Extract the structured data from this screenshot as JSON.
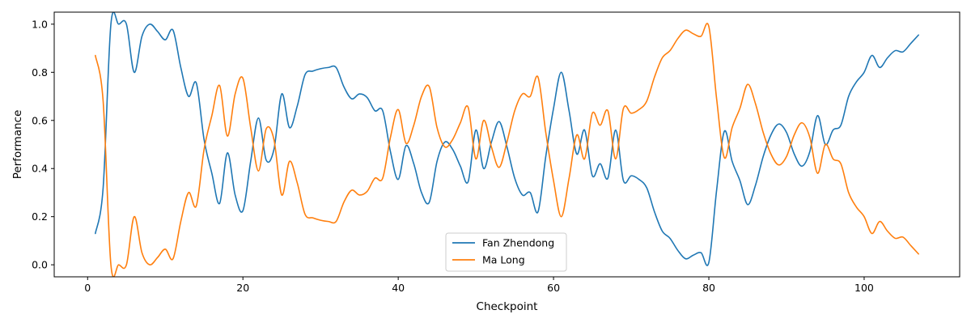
{
  "chart_data": {
    "type": "line",
    "title": "",
    "xlabel": "Checkpoint",
    "ylabel": "Performance",
    "xlim": [
      -4.3,
      112.3
    ],
    "ylim": [
      -0.05,
      1.05
    ],
    "x_ticks": [
      0,
      20,
      40,
      60,
      80,
      100
    ],
    "x_tick_labels": [
      "0",
      "20",
      "40",
      "60",
      "80",
      "100"
    ],
    "y_ticks": [
      0.0,
      0.2,
      0.4,
      0.6,
      0.8,
      1.0
    ],
    "y_tick_labels": [
      "0.0",
      "0.2",
      "0.4",
      "0.6",
      "0.8",
      "1.0"
    ],
    "grid": false,
    "legend_position": "lower-center",
    "x": [
      1,
      2,
      3,
      4,
      5,
      6,
      7,
      8,
      9,
      10,
      11,
      12,
      13,
      14,
      15,
      16,
      17,
      18,
      19,
      20,
      21,
      22,
      23,
      24,
      25,
      26,
      27,
      28,
      29,
      30,
      31,
      32,
      33,
      34,
      35,
      36,
      37,
      38,
      39,
      40,
      41,
      42,
      43,
      44,
      45,
      46,
      47,
      48,
      49,
      50,
      51,
      52,
      53,
      54,
      55,
      56,
      57,
      58,
      59,
      60,
      61,
      62,
      63,
      64,
      65,
      66,
      67,
      68,
      69,
      70,
      71,
      72,
      73,
      74,
      75,
      76,
      77,
      78,
      79,
      80,
      81,
      82,
      83,
      84,
      85,
      86,
      87,
      88,
      89,
      90,
      91,
      92,
      93,
      94,
      95,
      96,
      97,
      98,
      99,
      100,
      101,
      102,
      103,
      104,
      105,
      106,
      107
    ],
    "series": [
      {
        "name": "Fan Zhendong",
        "color": "#1f77b4",
        "values": [
          0.13,
          0.32,
          1.0,
          1.0,
          1.0,
          0.8,
          0.95,
          1.0,
          0.97,
          0.935,
          0.975,
          0.82,
          0.7,
          0.755,
          0.52,
          0.38,
          0.255,
          0.465,
          0.29,
          0.225,
          0.43,
          0.61,
          0.435,
          0.48,
          0.71,
          0.57,
          0.66,
          0.79,
          0.805,
          0.815,
          0.82,
          0.82,
          0.74,
          0.69,
          0.71,
          0.695,
          0.64,
          0.64,
          0.47,
          0.355,
          0.495,
          0.42,
          0.3,
          0.26,
          0.43,
          0.51,
          0.48,
          0.41,
          0.345,
          0.56,
          0.4,
          0.51,
          0.595,
          0.49,
          0.36,
          0.29,
          0.3,
          0.22,
          0.45,
          0.65,
          0.8,
          0.64,
          0.46,
          0.56,
          0.37,
          0.42,
          0.36,
          0.56,
          0.35,
          0.37,
          0.355,
          0.32,
          0.22,
          0.14,
          0.11,
          0.06,
          0.025,
          0.04,
          0.05,
          0.01,
          0.31,
          0.555,
          0.43,
          0.35,
          0.25,
          0.33,
          0.45,
          0.54,
          0.585,
          0.55,
          0.46,
          0.41,
          0.47,
          0.62,
          0.5,
          0.56,
          0.58,
          0.7,
          0.76,
          0.8,
          0.87,
          0.82,
          0.86,
          0.89,
          0.885,
          0.92,
          0.955
        ]
      },
      {
        "name": "Ma Long",
        "color": "#ff7f0e",
        "values": [
          0.87,
          0.68,
          0.0,
          0.0,
          0.0,
          0.2,
          0.05,
          0.0,
          0.03,
          0.065,
          0.025,
          0.18,
          0.3,
          0.245,
          0.48,
          0.62,
          0.745,
          0.535,
          0.71,
          0.775,
          0.57,
          0.39,
          0.565,
          0.52,
          0.29,
          0.43,
          0.34,
          0.21,
          0.195,
          0.185,
          0.18,
          0.18,
          0.26,
          0.31,
          0.29,
          0.305,
          0.36,
          0.36,
          0.53,
          0.645,
          0.505,
          0.58,
          0.7,
          0.74,
          0.57,
          0.49,
          0.52,
          0.59,
          0.655,
          0.44,
          0.6,
          0.49,
          0.405,
          0.51,
          0.64,
          0.71,
          0.7,
          0.78,
          0.55,
          0.35,
          0.2,
          0.36,
          0.54,
          0.44,
          0.63,
          0.58,
          0.64,
          0.44,
          0.65,
          0.63,
          0.645,
          0.68,
          0.78,
          0.86,
          0.89,
          0.94,
          0.975,
          0.96,
          0.95,
          0.99,
          0.69,
          0.445,
          0.57,
          0.65,
          0.75,
          0.67,
          0.55,
          0.46,
          0.415,
          0.45,
          0.54,
          0.59,
          0.53,
          0.38,
          0.5,
          0.44,
          0.42,
          0.3,
          0.24,
          0.2,
          0.13,
          0.18,
          0.14,
          0.11,
          0.115,
          0.08,
          0.045
        ]
      }
    ]
  }
}
